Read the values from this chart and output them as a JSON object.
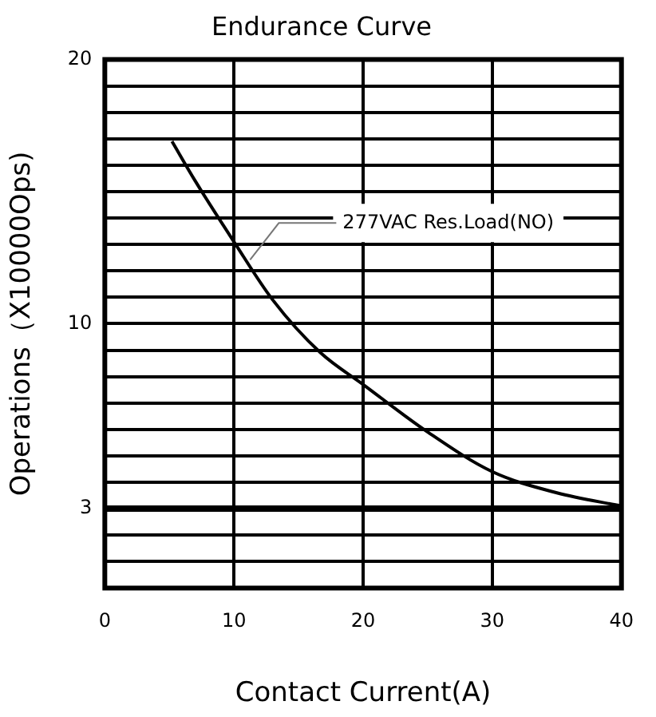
{
  "chart_data": {
    "type": "line",
    "title": "Endurance Curve",
    "xlabel": "Contact Current(A)",
    "ylabel": "Operations（X10000Ops)",
    "x": [
      5.2,
      7,
      10,
      13,
      16.7,
      20,
      25,
      30,
      35,
      40
    ],
    "series": [
      {
        "color": "#000000",
        "values": [
          16.9,
          15.4,
          13.1,
          10.9,
          8.9,
          7.7,
          5.9,
          4.4,
          3.6,
          3.1
        ]
      }
    ],
    "xlim": [
      0,
      40
    ],
    "xticks": [
      0,
      10,
      20,
      30,
      40
    ],
    "ylim": [
      0,
      20
    ],
    "yticks": [
      {
        "value": 0,
        "label": null
      },
      {
        "value": 1,
        "label": null
      },
      {
        "value": 2,
        "label": null
      },
      3,
      {
        "value": 4,
        "label": null
      },
      {
        "value": 5,
        "label": null
      },
      {
        "value": 6,
        "label": null
      },
      {
        "value": 7,
        "label": null
      },
      {
        "value": 8,
        "label": null
      },
      {
        "value": 9,
        "label": null
      },
      10,
      {
        "value": 11,
        "label": null
      },
      {
        "value": 12,
        "label": null
      },
      {
        "value": 13,
        "label": null
      },
      {
        "value": 14,
        "label": null
      },
      {
        "value": 15,
        "label": null
      },
      {
        "value": 16,
        "label": null
      },
      {
        "value": 17,
        "label": null
      },
      {
        "value": 18,
        "label": null
      },
      {
        "value": 19,
        "label": null
      },
      20
    ],
    "ref_lines": [
      {
        "axis": "y",
        "value": 3,
        "color": "#000000"
      }
    ],
    "annotations": [
      {
        "text": "277VAC Res.Load(NO)",
        "x": 11,
        "y": 12.3
      }
    ],
    "grid": true,
    "marker": "none",
    "line_style": "solid",
    "legend": false
  }
}
